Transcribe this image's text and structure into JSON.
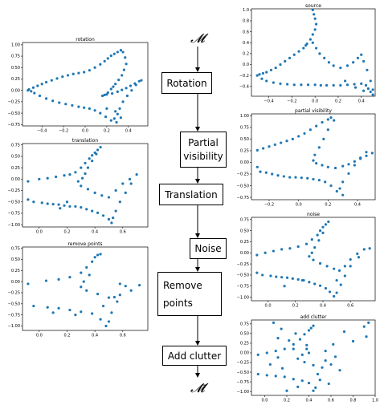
{
  "pipeline": {
    "input_symbol": "𝓜",
    "output_symbol": "𝓜̄",
    "steps": [
      {
        "key": "rotation",
        "label": "Rotation"
      },
      {
        "key": "partial",
        "label": "Partial visibility"
      },
      {
        "key": "translation",
        "label": "Translation"
      },
      {
        "key": "noise",
        "label": "Noise"
      },
      {
        "key": "remove",
        "label": "Remove points"
      },
      {
        "key": "clutter",
        "label": "Add clutter"
      }
    ]
  },
  "colors": {
    "points": "#1f77b4",
    "axis": "#000000"
  },
  "chart_data": [
    {
      "id": "rotation",
      "type": "scatter",
      "title": "rotation",
      "xlim": [
        -0.58,
        0.58
      ],
      "ylim": [
        -0.78,
        1.05
      ],
      "xticks": [
        -0.4,
        -0.2,
        0.0,
        0.2,
        0.4
      ],
      "xtick_labels": [
        "−0.4",
        "−0.2",
        "0.0",
        "0.2",
        "0.4"
      ],
      "yticks": [
        1.0,
        0.75,
        0.5,
        0.25,
        0.0,
        -0.25,
        -0.5,
        -0.75
      ],
      "ytick_labels": [
        "1.00",
        "0.75",
        "0.50",
        "0.25",
        "0.00",
        "−0.25",
        "−0.50",
        "−0.75"
      ],
      "x": [
        -0.53,
        -0.48,
        -0.44,
        -0.4,
        -0.36,
        -0.31,
        -0.26,
        -0.21,
        -0.16,
        -0.11,
        -0.06,
        -0.01,
        0.04,
        0.09,
        0.14,
        0.18,
        0.21,
        0.24,
        0.27,
        0.3,
        0.33,
        0.35,
        0.37,
        0.38,
        0.36,
        0.34,
        0.31,
        0.28,
        0.26,
        0.24,
        0.21,
        0.18,
        0.16,
        0.2,
        0.25,
        0.3,
        0.34,
        0.38,
        0.42,
        0.46,
        0.5,
        0.52,
        0.47,
        0.43,
        0.39,
        0.35,
        0.32,
        0.3,
        0.27,
        0.29,
        0.24,
        0.19,
        0.14,
        0.09,
        0.04,
        -0.01,
        -0.06,
        -0.12,
        -0.18,
        -0.24,
        -0.3,
        -0.36,
        -0.42,
        -0.47,
        -0.5,
        -0.52,
        0.2,
        0.28,
        0.33
      ],
      "y": [
        0.0,
        0.06,
        0.1,
        0.14,
        0.18,
        0.22,
        0.26,
        0.3,
        0.33,
        0.36,
        0.38,
        0.4,
        0.44,
        0.5,
        0.57,
        0.64,
        0.7,
        0.76,
        0.8,
        0.84,
        0.88,
        0.84,
        0.72,
        0.58,
        0.45,
        0.33,
        0.23,
        0.14,
        0.08,
        0.03,
        -0.05,
        -0.1,
        -0.12,
        -0.09,
        -0.07,
        -0.03,
        0.01,
        0.05,
        0.1,
        0.15,
        0.2,
        0.22,
        0.12,
        0.0,
        -0.12,
        -0.25,
        -0.4,
        -0.52,
        -0.62,
        -0.7,
        -0.66,
        -0.58,
        -0.5,
        -0.44,
        -0.4,
        -0.38,
        -0.36,
        -0.33,
        -0.3,
        -0.27,
        -0.23,
        -0.18,
        -0.12,
        -0.06,
        -0.02,
        0.02,
        -0.4,
        -0.46,
        -0.6
      ]
    },
    {
      "id": "translation",
      "type": "scatter",
      "title": "translation",
      "xlim": [
        -0.12,
        0.78
      ],
      "ylim": [
        -1.05,
        0.78
      ],
      "xticks": [
        0.0,
        0.2,
        0.4,
        0.6
      ],
      "xtick_labels": [
        "0.0",
        "0.2",
        "0.4",
        "0.6"
      ],
      "yticks": [
        0.75,
        0.5,
        0.25,
        0.0,
        -0.25,
        -0.5,
        -0.75,
        -1.0
      ],
      "ytick_labels": [
        "0.75",
        "0.50",
        "0.25",
        "0.00",
        "−0.25",
        "−0.50",
        "−0.75",
        "−1.00"
      ],
      "x": [
        -0.08,
        0.0,
        0.06,
        0.12,
        0.18,
        0.22,
        0.26,
        0.3,
        0.33,
        0.36,
        0.38,
        0.4,
        0.42,
        0.44,
        0.41,
        0.38,
        0.35,
        0.33,
        0.31,
        0.28,
        0.3,
        0.35,
        0.4,
        0.45,
        0.5,
        0.55,
        0.6,
        0.65,
        0.7,
        0.66,
        0.62,
        0.58,
        0.55,
        0.53,
        0.52,
        0.5,
        0.46,
        0.42,
        0.38,
        0.34,
        0.3,
        0.26,
        0.22,
        0.18,
        0.14,
        0.1,
        0.06,
        0.02,
        -0.04,
        -0.08,
        0.2,
        0.15
      ],
      "y": [
        -0.05,
        0.0,
        0.02,
        0.05,
        0.08,
        0.1,
        0.15,
        0.25,
        0.35,
        0.45,
        0.52,
        0.58,
        0.64,
        0.7,
        0.55,
        0.4,
        0.25,
        0.12,
        0.02,
        -0.05,
        -0.15,
        -0.22,
        -0.3,
        -0.36,
        -0.4,
        -0.25,
        -0.1,
        0.0,
        0.1,
        -0.1,
        -0.3,
        -0.5,
        -0.7,
        -0.85,
        -0.96,
        -0.88,
        -0.8,
        -0.74,
        -0.7,
        -0.66,
        -0.62,
        -0.6,
        -0.6,
        -0.58,
        -0.56,
        -0.55,
        -0.54,
        -0.52,
        -0.5,
        -0.45,
        -0.5,
        -0.64
      ]
    },
    {
      "id": "remove",
      "type": "scatter",
      "title": "remove points",
      "xlim": [
        -0.12,
        0.78
      ],
      "ylim": [
        -1.1,
        0.78
      ],
      "xticks": [
        0.0,
        0.2,
        0.4,
        0.6
      ],
      "xtick_labels": [
        "0.0",
        "0.2",
        "0.4",
        "0.6"
      ],
      "yticks": [
        0.75,
        0.5,
        0.25,
        0.0,
        -0.25,
        -0.5,
        -0.75,
        -1.0
      ],
      "ytick_labels": [
        "0.75",
        "0.50",
        "0.25",
        "0.00",
        "−0.25",
        "−0.50",
        "−0.75",
        "−1.00"
      ],
      "x": [
        -0.08,
        0.05,
        0.14,
        0.22,
        0.3,
        0.34,
        0.38,
        0.4,
        0.42,
        0.44,
        0.36,
        0.32,
        0.3,
        0.34,
        0.42,
        0.5,
        0.58,
        0.66,
        0.72,
        0.62,
        0.56,
        0.52,
        0.5,
        0.48,
        0.44,
        0.38,
        0.3,
        0.22,
        0.14,
        0.06,
        -0.04,
        0.1,
        0.26,
        0.46,
        0.54,
        0.58
      ],
      "y": [
        -0.05,
        0.02,
        0.05,
        0.1,
        0.2,
        0.32,
        0.45,
        0.55,
        0.6,
        0.62,
        0.15,
        0.0,
        -0.12,
        -0.2,
        -0.28,
        -0.36,
        -0.3,
        -0.2,
        -0.08,
        -0.1,
        -0.45,
        -0.7,
        -0.9,
        -1.0,
        -0.85,
        -0.72,
        -0.68,
        -0.64,
        -0.6,
        -0.58,
        -0.55,
        -0.7,
        -0.75,
        -0.55,
        -0.35,
        -0.05
      ]
    },
    {
      "id": "source",
      "type": "scatter",
      "title": "source",
      "xlim": [
        -0.55,
        0.52
      ],
      "ylim": [
        -0.58,
        1.02
      ],
      "xticks": [
        -0.4,
        -0.2,
        0.0,
        0.2,
        0.4
      ],
      "xtick_labels": [
        "−0.4",
        "−0.2",
        "0.0",
        "0.2",
        "0.4"
      ],
      "yticks": [
        1.0,
        0.8,
        0.6,
        0.4,
        0.2,
        0.0,
        -0.2,
        -0.4
      ],
      "ytick_labels": [
        "1.0",
        "0.8",
        "0.6",
        "0.4",
        "0.2",
        "0.0",
        "−0.2",
        "−0.4"
      ],
      "x": [
        -0.02,
        -0.01,
        0.0,
        0.01,
        0.0,
        -0.02,
        -0.04,
        -0.07,
        -0.1,
        -0.14,
        -0.18,
        -0.22,
        -0.26,
        -0.3,
        -0.34,
        -0.38,
        -0.42,
        -0.45,
        -0.48,
        -0.5,
        -0.46,
        -0.42,
        -0.36,
        -0.3,
        -0.24,
        -0.18,
        -0.12,
        -0.06,
        0.0,
        0.05,
        0.1,
        0.16,
        0.22,
        0.28,
        0.34,
        0.4,
        0.44,
        0.46,
        0.48,
        0.5,
        0.5,
        0.48,
        0.45,
        0.42,
        0.4,
        0.37,
        0.33,
        0.28,
        0.22,
        0.16,
        0.12,
        0.08,
        0.04,
        0.01,
        -0.02,
        -0.08,
        0.26,
        0.35,
        0.42
      ],
      "y": [
        1.0,
        0.92,
        0.84,
        0.74,
        0.64,
        0.55,
        0.46,
        0.38,
        0.3,
        0.24,
        0.18,
        0.12,
        0.06,
        0.0,
        -0.06,
        -0.1,
        -0.14,
        -0.16,
        -0.18,
        -0.2,
        -0.26,
        -0.3,
        -0.33,
        -0.35,
        -0.36,
        -0.37,
        -0.37,
        -0.37,
        -0.37,
        -0.38,
        -0.38,
        -0.38,
        -0.38,
        -0.37,
        -0.36,
        -0.35,
        -0.38,
        -0.44,
        -0.5,
        -0.55,
        -0.46,
        -0.3,
        -0.1,
        0.06,
        0.18,
        0.12,
        0.04,
        -0.02,
        -0.06,
        -0.02,
        0.04,
        0.12,
        0.2,
        0.3,
        0.4,
        0.35,
        -0.3,
        -0.42,
        -0.48
      ]
    },
    {
      "id": "partial",
      "type": "scatter",
      "title": "partial visibility",
      "xlim": [
        -0.32,
        0.52
      ],
      "ylim": [
        -0.8,
        1.04
      ],
      "xticks": [
        -0.2,
        0.0,
        0.2,
        0.4
      ],
      "xtick_labels": [
        "−0.2",
        "0.0",
        "0.2",
        "0.4"
      ],
      "yticks": [
        1.0,
        0.75,
        0.5,
        0.25,
        0.0,
        -0.25,
        -0.5,
        -0.75
      ],
      "ytick_labels": [
        "1.00",
        "0.75",
        "0.50",
        "0.25",
        "0.00",
        "−0.25",
        "−0.50",
        "−0.75"
      ],
      "x": [
        -0.28,
        -0.24,
        -0.2,
        -0.16,
        -0.12,
        -0.08,
        -0.04,
        0.0,
        0.04,
        0.08,
        0.12,
        0.16,
        0.2,
        0.22,
        0.24,
        0.2,
        0.17,
        0.14,
        0.11,
        0.1,
        0.12,
        0.16,
        0.2,
        0.25,
        0.3,
        0.34,
        0.38,
        0.42,
        0.46,
        0.5,
        0.46,
        0.42,
        0.38,
        0.34,
        0.3,
        0.28,
        0.3,
        0.26,
        0.22,
        0.18,
        0.14,
        0.1,
        0.06,
        0.02,
        -0.02,
        -0.06,
        -0.1,
        -0.14,
        -0.18,
        -0.22,
        -0.26,
        -0.28
      ],
      "y": [
        0.26,
        0.3,
        0.34,
        0.38,
        0.42,
        0.46,
        0.5,
        0.56,
        0.62,
        0.7,
        0.78,
        0.86,
        0.92,
        0.96,
        0.9,
        0.7,
        0.5,
        0.32,
        0.16,
        0.04,
        -0.02,
        -0.06,
        -0.1,
        -0.12,
        -0.08,
        -0.04,
        0.02,
        0.08,
        0.14,
        0.2,
        0.22,
        0.1,
        -0.06,
        -0.24,
        -0.42,
        -0.56,
        -0.7,
        -0.62,
        -0.5,
        -0.42,
        -0.38,
        -0.36,
        -0.34,
        -0.33,
        -0.32,
        -0.32,
        -0.3,
        -0.28,
        -0.25,
        -0.22,
        -0.2,
        -0.1
      ]
    },
    {
      "id": "noise",
      "type": "scatter",
      "title": "noise",
      "xlim": [
        -0.12,
        0.78
      ],
      "ylim": [
        -1.08,
        0.8
      ],
      "xticks": [
        0.0,
        0.2,
        0.4,
        0.6
      ],
      "xtick_labels": [
        "0.0",
        "0.2",
        "0.4",
        "0.6"
      ],
      "yticks": [
        0.75,
        0.5,
        0.25,
        0.0,
        -0.25,
        -0.5,
        -0.75,
        -1.0
      ],
      "ytick_labels": [
        "0.75",
        "0.50",
        "0.25",
        "0.00",
        "−0.25",
        "−0.50",
        "−0.75",
        "−1.00"
      ],
      "x": [
        -0.08,
        -0.02,
        0.04,
        0.1,
        0.16,
        0.22,
        0.28,
        0.32,
        0.36,
        0.38,
        0.4,
        0.42,
        0.44,
        0.4,
        0.37,
        0.34,
        0.32,
        0.3,
        0.33,
        0.38,
        0.43,
        0.48,
        0.52,
        0.56,
        0.6,
        0.65,
        0.7,
        0.74,
        0.66,
        0.6,
        0.56,
        0.53,
        0.5,
        0.48,
        0.45,
        0.42,
        0.38,
        0.34,
        0.3,
        0.26,
        0.22,
        0.18,
        0.14,
        0.1,
        0.06,
        0.02,
        -0.04,
        -0.08,
        0.12,
        0.25,
        0.5
      ],
      "y": [
        -0.05,
        0.0,
        0.04,
        0.08,
        0.1,
        0.14,
        0.2,
        0.3,
        0.4,
        0.5,
        0.58,
        0.64,
        0.7,
        0.45,
        0.28,
        0.12,
        0.0,
        -0.08,
        -0.16,
        -0.24,
        -0.3,
        -0.36,
        -0.4,
        -0.3,
        -0.15,
        -0.02,
        0.08,
        0.1,
        -0.1,
        -0.3,
        -0.52,
        -0.72,
        -0.9,
        -0.98,
        -0.88,
        -0.8,
        -0.74,
        -0.7,
        -0.66,
        -0.62,
        -0.6,
        -0.58,
        -0.56,
        -0.55,
        -0.54,
        -0.52,
        -0.5,
        -0.45,
        -0.75,
        -0.62,
        -0.62
      ]
    },
    {
      "id": "clutter",
      "type": "scatter",
      "title": "add clutter",
      "xlim": [
        -0.12,
        1.0
      ],
      "ylim": [
        -1.1,
        0.85
      ],
      "xticks": [
        0.0,
        0.2,
        0.4,
        0.6,
        0.8,
        1.0
      ],
      "xtick_labels": [
        "0.0",
        "0.2",
        "0.4",
        "0.6",
        "0.8",
        "1.0"
      ],
      "yticks": [
        0.75,
        0.5,
        0.25,
        0.0,
        -0.25,
        -0.5,
        -0.75,
        -1.0
      ],
      "ytick_labels": [
        "0.75",
        "0.50",
        "0.25",
        "0.00",
        "−0.25",
        "−0.50",
        "−0.75",
        "−1.00"
      ],
      "x": [
        -0.06,
        0.02,
        0.1,
        0.18,
        0.26,
        0.32,
        0.36,
        0.4,
        0.42,
        0.44,
        0.38,
        0.34,
        0.3,
        0.36,
        0.44,
        0.52,
        0.6,
        0.5,
        0.46,
        0.44,
        0.4,
        0.34,
        0.26,
        0.18,
        0.1,
        0.02,
        -0.06,
        0.94,
        0.92,
        0.72,
        0.62,
        0.55,
        0.08,
        0.15,
        0.22,
        0.28,
        0.05,
        0.12,
        0.48,
        0.58,
        0.68,
        0.2,
        0.3,
        0.16,
        0.38,
        0.64,
        0.26,
        0.8,
        0.9,
        0.12,
        0.4,
        0.55
      ],
      "y": [
        -0.05,
        0.0,
        0.05,
        0.1,
        0.22,
        0.35,
        0.48,
        0.58,
        0.64,
        0.7,
        0.1,
        -0.05,
        -0.15,
        -0.24,
        -0.32,
        -0.38,
        -0.3,
        -0.7,
        -0.9,
        -0.98,
        -0.78,
        -0.72,
        -0.68,
        -0.62,
        -0.6,
        -0.58,
        -0.55,
        0.78,
        0.42,
        0.55,
        0.22,
        0.05,
        0.78,
        0.62,
        0.32,
        0.5,
        -0.3,
        -0.12,
        -0.55,
        -0.8,
        -0.45,
        -0.98,
        -0.88,
        -0.4,
        0.2,
        -0.1,
        0.1,
        0.3,
        0.68,
        0.38,
        0.0,
        -0.2
      ]
    }
  ]
}
